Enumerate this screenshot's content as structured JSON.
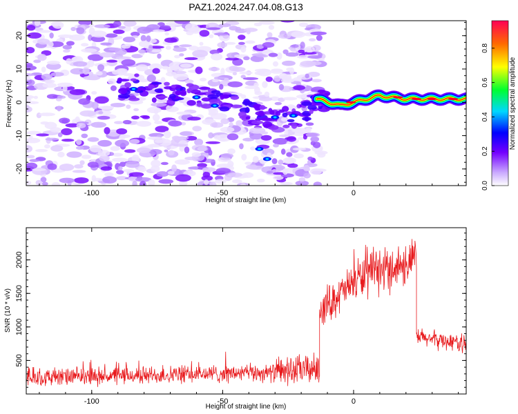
{
  "title": "PAZ1.2024.247.04.08.G13",
  "chart_data": [
    {
      "type": "heatmap",
      "xlabel": "Height of straight line (km)",
      "ylabel": "Frequency (Hz)",
      "xlim": [
        -125,
        43
      ],
      "ylim": [
        -25,
        24.5
      ],
      "xticks": [
        -100,
        -50,
        0
      ],
      "yticks": [
        -20,
        -10,
        0,
        10,
        20
      ],
      "colorbar": {
        "label": "Normalized spectral amplitude",
        "range": [
          0,
          0.96
        ],
        "ticks": [
          "0.0",
          "0.2",
          "0.4",
          "0.6",
          "0.8"
        ],
        "colors": [
          "#ffffff",
          "#b98bff",
          "#6a00ff",
          "#0000ff",
          "#00e5ff",
          "#00ff00",
          "#ffff00",
          "#ff6600",
          "#ff0055"
        ]
      },
      "ridge": [
        {
          "x": -85,
          "y": 4,
          "amp": 0.3
        },
        {
          "x": -60,
          "y": 2,
          "amp": 0.3
        },
        {
          "x": -50,
          "y": 0,
          "amp": 0.3
        },
        {
          "x": -40,
          "y": -3,
          "amp": 0.25
        },
        {
          "x": -30,
          "y": -5,
          "amp": 0.28
        },
        {
          "x": -20,
          "y": -4,
          "amp": 0.3
        },
        {
          "x": -14,
          "y": 1,
          "amp": 0.35
        },
        {
          "x": -5,
          "y": -1,
          "amp": 0.6
        },
        {
          "x": 0,
          "y": 0,
          "amp": 0.75
        },
        {
          "x": 10,
          "y": 2,
          "amp": 0.7
        },
        {
          "x": 20,
          "y": 1,
          "amp": 0.85
        },
        {
          "x": 43,
          "y": 1,
          "amp": 0.9
        }
      ]
    },
    {
      "type": "line",
      "xlabel": "Height of straight line (km)",
      "ylabel": "SNR (10 * v/v)",
      "xlim": [
        -125,
        43
      ],
      "ylim": [
        0,
        2480
      ],
      "xticks": [
        -100,
        -50,
        0
      ],
      "yticks": [
        500,
        1000,
        1500,
        2000
      ],
      "color": "#e8191c",
      "segments": [
        {
          "x0": -125,
          "x1": -30,
          "base0": 240,
          "base1": 320,
          "noise": 120
        },
        {
          "x0": -30,
          "x1": -13,
          "base0": 330,
          "base1": 380,
          "noise": 200
        },
        {
          "x0": -13,
          "x1": 0,
          "base0": 1250,
          "base1": 1650,
          "noise": 250
        },
        {
          "x0": 0,
          "x1": 24,
          "base0": 1700,
          "base1": 2000,
          "noise": 300
        },
        {
          "x0": 24,
          "x1": 43,
          "base0": 850,
          "base1": 750,
          "noise": 120
        }
      ]
    }
  ]
}
